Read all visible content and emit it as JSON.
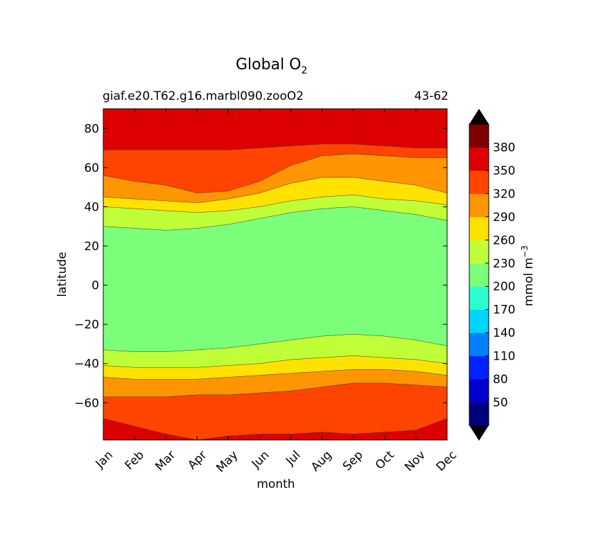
{
  "chart_data": {
    "type": "contour",
    "title_main": "Global O",
    "title_sub": "2",
    "subtitle_left": "giaf.e20.T62.g16.marbl090.zooO2",
    "subtitle_right": "43-62",
    "xlabel": "month",
    "ylabel": "latitude",
    "x_ticks": [
      "Jan",
      "Feb",
      "Mar",
      "Apr",
      "May",
      "Jun",
      "Jul",
      "Aug",
      "Sep",
      "Oct",
      "Nov",
      "Dec"
    ],
    "y_ticks": [
      80,
      60,
      40,
      20,
      0,
      -20,
      -40,
      -60
    ],
    "y_tick_labels": [
      "80",
      "60",
      "40",
      "20",
      "0",
      "−20",
      "−40",
      "−60"
    ],
    "ylim": [
      -79,
      90
    ],
    "colorbar": {
      "label": "mmol m",
      "label_exp": "−3",
      "levels": [
        20,
        50,
        80,
        110,
        140,
        170,
        200,
        230,
        260,
        290,
        320,
        350,
        380,
        410
      ],
      "tick_labels": [
        "50",
        "80",
        "110",
        "140",
        "170",
        "200",
        "230",
        "260",
        "290",
        "320",
        "350",
        "380"
      ],
      "colors": [
        "#00007f",
        "#0000cc",
        "#0022ff",
        "#007fff",
        "#00d4ff",
        "#2bffcf",
        "#7bff7b",
        "#c0ff37",
        "#ffe200",
        "#ff9500",
        "#ff4400",
        "#dd0000",
        "#7f0000"
      ],
      "extend_low": "#000000",
      "extend_high": "#000000"
    },
    "contours": {
      "months": [
        1,
        2,
        3,
        4,
        5,
        6,
        7,
        8,
        9,
        10,
        11,
        12
      ],
      "boundaries_lat": {
        "north_350": [
          69,
          69,
          69,
          69,
          69,
          70,
          71,
          72,
          72,
          71,
          70,
          70
        ],
        "north_320": [
          56,
          53,
          51,
          47,
          48,
          53,
          61,
          66,
          67,
          66,
          65,
          65
        ],
        "north_290": [
          45,
          44,
          43,
          42,
          44,
          47,
          52,
          55,
          55,
          53,
          51,
          47
        ],
        "north_260": [
          40,
          39,
          38,
          37,
          38,
          40,
          43,
          45,
          46,
          44,
          43,
          41
        ],
        "north_230": [
          30,
          29,
          28,
          29,
          31,
          34,
          37,
          39,
          40,
          38,
          36,
          33
        ],
        "south_230": [
          -33,
          -34,
          -34,
          -33,
          -32,
          -30,
          -28,
          -26,
          -25,
          -26,
          -28,
          -31
        ],
        "south_260": [
          -41,
          -42,
          -42,
          -42,
          -41,
          -40,
          -38,
          -37,
          -36,
          -37,
          -38,
          -40
        ],
        "south_290": [
          -47,
          -48,
          -48,
          -48,
          -47,
          -46,
          -45,
          -44,
          -43,
          -43,
          -44,
          -46
        ],
        "south_320": [
          -57,
          -57,
          -57,
          -56,
          -56,
          -55,
          -54,
          -52,
          -50,
          -50,
          -51,
          -52
        ],
        "south_350_edge": [
          -68,
          -72,
          -76,
          -79,
          -77,
          -76,
          -76,
          -75,
          -76,
          -75,
          -74,
          -68
        ]
      }
    },
    "grid": false
  }
}
